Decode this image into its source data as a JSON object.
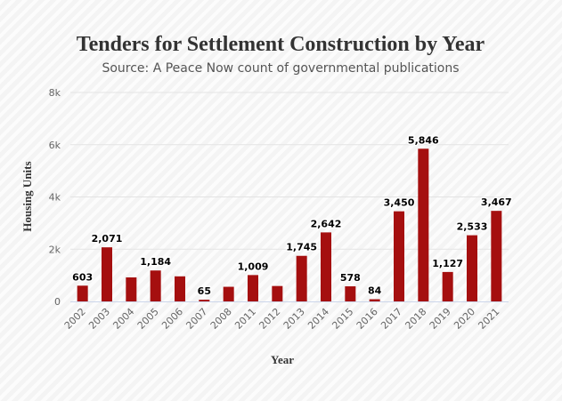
{
  "chart_data": {
    "type": "bar",
    "title": "Tenders for Settlement Construction by Year",
    "subtitle": "Source: A Peace Now count of governmental publications",
    "xlabel": "Year",
    "ylabel": "Housing Units",
    "categories": [
      "2002",
      "2003",
      "2004",
      "2005",
      "2006",
      "2007",
      "2008",
      "2011",
      "2012",
      "2013",
      "2014",
      "2015",
      "2016",
      "2017",
      "2018",
      "2019",
      "2020",
      "2021"
    ],
    "values": [
      603,
      2071,
      920,
      1184,
      960,
      65,
      560,
      1009,
      590,
      1745,
      2642,
      578,
      84,
      3450,
      5846,
      1127,
      2533,
      3467
    ],
    "data_labels": [
      "603",
      "2,071",
      "",
      "1,184",
      "",
      "65",
      "",
      "1,009",
      "",
      "1,745",
      "2,642",
      "578",
      "84",
      "3,450",
      "5,846",
      "1,127",
      "2,533",
      "3,467"
    ],
    "ylim": [
      0,
      8000
    ],
    "yticks": [
      0,
      2000,
      4000,
      6000,
      8000
    ],
    "ytick_labels": [
      "0",
      "2k",
      "4k",
      "6k",
      "8k"
    ],
    "grid": true,
    "bar_color": "#a50f0f"
  }
}
